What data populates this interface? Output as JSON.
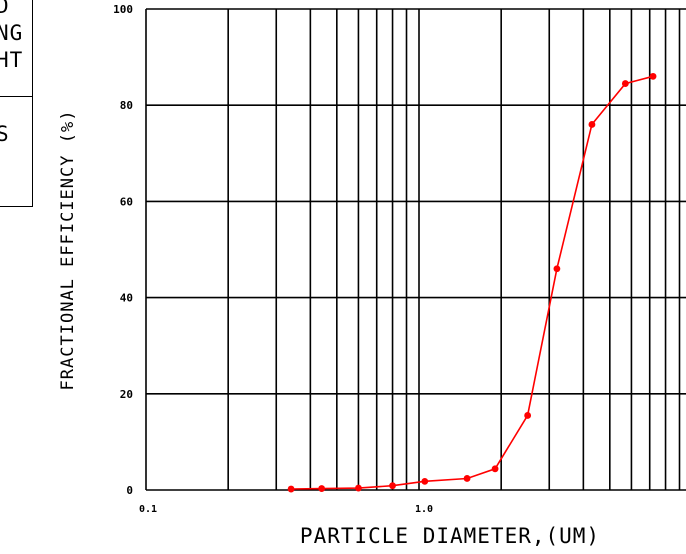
{
  "legend_fragments": [
    "D",
    "NG",
    "HT",
    "S"
  ],
  "chart_data": {
    "type": "line",
    "xlabel": "PARTICLE DIAMETER,(UM)",
    "ylabel": "FRACTIONAL EFFICIENCY (%)",
    "x_scale": "log",
    "xlim": [
      0.1,
      9.5
    ],
    "ylim": [
      0,
      100
    ],
    "y_ticks": [
      0,
      20,
      40,
      60,
      80,
      100
    ],
    "x_tick_labels": [
      {
        "value": 0.1,
        "label": "0.1"
      },
      {
        "value": 1.0,
        "label": "1.0"
      }
    ],
    "grid": true,
    "line_color": "#ff0000",
    "series": [
      {
        "x": [
          0.34,
          0.44,
          0.6,
          0.8,
          1.05,
          1.5,
          1.9,
          2.5,
          3.2,
          4.3,
          5.7,
          7.2
        ],
        "y": [
          0.2,
          0.3,
          0.4,
          0.9,
          1.8,
          2.4,
          4.4,
          15.5,
          46,
          76,
          84.5,
          86
        ]
      }
    ]
  }
}
